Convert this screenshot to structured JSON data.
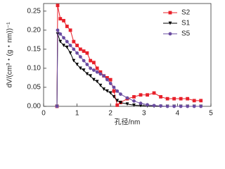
{
  "chart_data": {
    "type": "line",
    "x_label": "孔径/nm",
    "y_label": "dV/(cm³・(g・nm))⁻¹",
    "x": [
      0.4,
      0.42,
      0.5,
      0.6,
      0.7,
      0.8,
      0.9,
      1.0,
      1.1,
      1.2,
      1.3,
      1.4,
      1.5,
      1.6,
      1.7,
      1.8,
      1.9,
      2.0,
      2.1,
      2.2,
      2.3,
      2.5,
      2.7,
      2.9,
      3.1,
      3.3,
      3.5,
      3.7,
      3.9,
      4.1,
      4.3,
      4.5,
      4.7
    ],
    "series": [
      {
        "name": "S2",
        "color": "#e8202a",
        "marker": "square",
        "values": [
          0,
          0.265,
          0.23,
          0.225,
          0.21,
          0.2,
          0.17,
          0.16,
          0.15,
          0.145,
          0.14,
          0.12,
          0.115,
          0.1,
          0.09,
          0.08,
          0.075,
          0.07,
          0.04,
          0.003,
          0.01,
          0.02,
          0.025,
          0.03,
          0.03,
          0.035,
          0.025,
          0.02,
          0.02,
          0.02,
          0.02,
          0.015,
          0.015
        ]
      },
      {
        "name": "S1",
        "color": "#000000",
        "marker": "triangle-down",
        "values": [
          0,
          0.19,
          0.17,
          0.16,
          0.155,
          0.14,
          0.12,
          0.11,
          0.1,
          0.095,
          0.085,
          0.08,
          0.07,
          0.065,
          0.055,
          0.045,
          0.04,
          0.035,
          0.025,
          0.015,
          0.01,
          0.006,
          0.003,
          0.002,
          0.001,
          0,
          0,
          0,
          0,
          0,
          0,
          0,
          0
        ]
      },
      {
        "name": "S5",
        "color": "#6a4ca0",
        "marker": "circle",
        "values": [
          0,
          0.2,
          0.19,
          0.18,
          0.17,
          0.16,
          0.15,
          0.14,
          0.13,
          0.12,
          0.11,
          0.1,
          0.095,
          0.09,
          0.085,
          0.08,
          0.07,
          0.06,
          0.05,
          0.04,
          0.032,
          0.022,
          0.014,
          0.008,
          0.004,
          0.002,
          0.001,
          0,
          0,
          0,
          0,
          0,
          0
        ]
      }
    ],
    "xlim": [
      0,
      5
    ],
    "xticks": [
      0,
      1,
      2,
      3,
      4,
      5
    ],
    "ylim": [
      0,
      0.27
    ],
    "yticks": [
      {
        "value": 0,
        "label": "0.00"
      },
      0.05,
      {
        "value": 0.1,
        "label": "0.10"
      },
      0.15,
      {
        "value": 0.2,
        "label": "0.20"
      },
      0.25
    ],
    "legend": "upper right"
  }
}
